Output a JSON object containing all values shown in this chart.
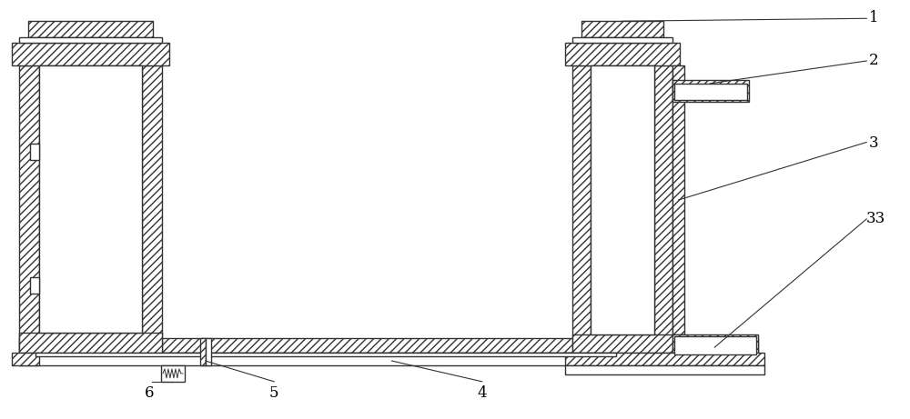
{
  "bg_color": "#ffffff",
  "line_color": "#333333",
  "lw": 1.0,
  "hatch": "////",
  "label_fontsize": 12,
  "ann_lw": 0.8,
  "ann_color": "#333333"
}
